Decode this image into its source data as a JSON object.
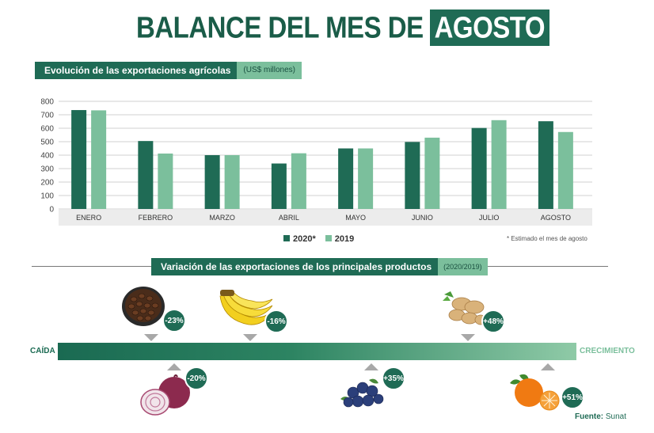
{
  "title": {
    "main": "BALANCE DEL MES DE",
    "highlight": "AGOSTO"
  },
  "chart_header": {
    "title": "Evolución de las exportaciones agrícolas",
    "unit": "(US$ millones)"
  },
  "colors": {
    "dark": "#1f6b55",
    "light": "#7bbf9c"
  },
  "chart_data": {
    "type": "bar",
    "categories": [
      "ENERO",
      "FEBRERO",
      "MARZO",
      "ABRIL",
      "MAYO",
      "JUNIO",
      "JULIO",
      "AGOSTO"
    ],
    "series": [
      {
        "name": "2020*",
        "color": "#1f6b55",
        "values": [
          735,
          505,
          400,
          338,
          450,
          498,
          602,
          652
        ]
      },
      {
        "name": "2019",
        "color": "#7bbf9c",
        "values": [
          733,
          412,
          400,
          414,
          450,
          530,
          660,
          572
        ]
      }
    ],
    "ylim": [
      0,
      800
    ],
    "yticks": [
      "800",
      "700",
      "600",
      "500",
      "400",
      "300",
      "200",
      "100",
      "0"
    ],
    "grid": true,
    "legend_position": "bottom"
  },
  "legend": {
    "s1": "2020*",
    "s2": "2019"
  },
  "footnote": "* Estimado el mes de agosto",
  "section": {
    "title": "Variación de las exportaciones de los principales productos",
    "period": "(2020/2019)"
  },
  "scale": {
    "left": "CAÍDA",
    "right": "CRECIMIENTO"
  },
  "products_top": [
    {
      "icon": "coffee-beans-icon",
      "change": "-23%"
    },
    {
      "icon": "banana-icon",
      "change": "-16%"
    },
    {
      "icon": "ginger-icon",
      "change": "+48%"
    }
  ],
  "products_bottom": [
    {
      "icon": "onion-icon",
      "change": "-20%"
    },
    {
      "icon": "blueberry-icon",
      "change": "+35%"
    },
    {
      "icon": "mandarin-icon",
      "change": "+51%"
    }
  ],
  "source": {
    "label": "Fuente:",
    "value": "Sunat"
  }
}
